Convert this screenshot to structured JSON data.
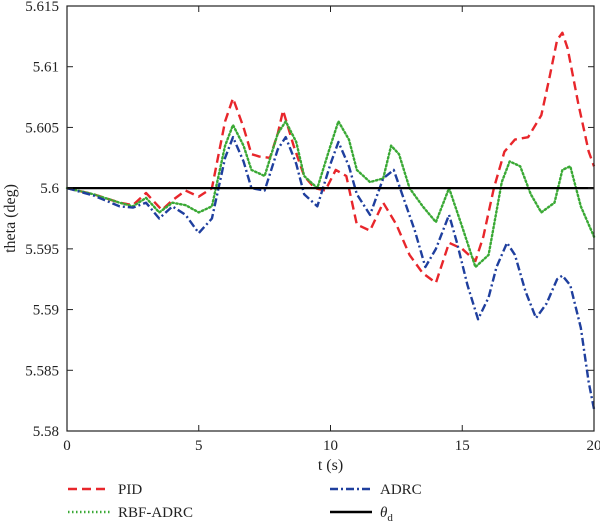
{
  "chart_data": {
    "type": "line",
    "xlabel": "t (s)",
    "ylabel": "theta (deg)",
    "xlim": [
      0,
      20
    ],
    "ylim": [
      5.58,
      5.615
    ],
    "x_ticks": [
      "0",
      "5",
      "10",
      "15",
      "20"
    ],
    "y_ticks": [
      "5.58",
      "5.585",
      "5.59",
      "5.595",
      "5.6",
      "5.605",
      "5.61",
      "5.615"
    ],
    "grid": false,
    "legend_position": "bottom",
    "series": [
      {
        "name": "PID",
        "color": "#e8262b",
        "dash": "dashed",
        "x": [
          0,
          1,
          2,
          2.5,
          3,
          3.6,
          4,
          4.5,
          5,
          5.5,
          6,
          6.3,
          6.7,
          7,
          7.3,
          7.7,
          8,
          8.2,
          8.6,
          9,
          9.4,
          9.8,
          10.2,
          10.6,
          11,
          11.5,
          12,
          12.5,
          13,
          13.5,
          14,
          14.5,
          15,
          15.5,
          15.8,
          16.2,
          16.6,
          17,
          17.5,
          18,
          18.3,
          18.6,
          18.8,
          19,
          19.4,
          19.8,
          20
        ],
        "y": [
          5.6,
          5.5995,
          5.5988,
          5.5986,
          5.5996,
          5.5982,
          5.599,
          5.5998,
          5.5993,
          5.6,
          5.6055,
          5.6074,
          5.605,
          5.6028,
          5.6026,
          5.6025,
          5.6045,
          5.6064,
          5.6035,
          5.601,
          5.6,
          5.5998,
          5.6015,
          5.601,
          5.597,
          5.5965,
          5.5988,
          5.597,
          5.5945,
          5.593,
          5.5922,
          5.5955,
          5.595,
          5.594,
          5.596,
          5.6,
          5.603,
          5.604,
          5.6042,
          5.606,
          5.609,
          5.6122,
          5.6128,
          5.6115,
          5.607,
          5.603,
          5.6018
        ]
      },
      {
        "name": "RBF-ADRC",
        "color": "#3aa935",
        "dash": "dotted",
        "x": [
          0,
          1,
          2,
          2.5,
          3,
          3.5,
          4,
          4.5,
          5,
          5.5,
          6,
          6.3,
          6.7,
          7,
          7.5,
          8,
          8.3,
          8.7,
          9,
          9.5,
          10,
          10.3,
          10.7,
          11,
          11.5,
          12,
          12.3,
          12.6,
          13,
          13.5,
          14,
          14.5,
          15,
          15.5,
          16,
          16.5,
          16.8,
          17.2,
          17.6,
          18,
          18.5,
          18.8,
          19.1,
          19.5,
          20
        ],
        "y": [
          5.6,
          5.5995,
          5.5988,
          5.5985,
          5.5992,
          5.598,
          5.5988,
          5.5986,
          5.598,
          5.5985,
          5.6035,
          5.6052,
          5.6035,
          5.6015,
          5.601,
          5.6045,
          5.6055,
          5.6038,
          5.601,
          5.6,
          5.6035,
          5.6055,
          5.604,
          5.6015,
          5.6005,
          5.6008,
          5.6035,
          5.6028,
          5.6,
          5.5985,
          5.5972,
          5.6,
          5.5968,
          5.5935,
          5.5945,
          5.6005,
          5.6022,
          5.6018,
          5.5995,
          5.598,
          5.5988,
          5.6015,
          5.6018,
          5.5985,
          5.596
        ]
      },
      {
        "name": "ADRC",
        "color": "#1f3f9e",
        "dash": "dashdot",
        "x": [
          0,
          1,
          2,
          2.5,
          3,
          3.5,
          4,
          4.5,
          5,
          5.5,
          6,
          6.3,
          6.7,
          7,
          7.5,
          8,
          8.3,
          8.7,
          9,
          9.5,
          10,
          10.3,
          10.7,
          11,
          11.5,
          12,
          12.4,
          12.8,
          13.2,
          13.6,
          14,
          14.5,
          14.8,
          15.2,
          15.6,
          16,
          16.3,
          16.7,
          17,
          17.4,
          17.8,
          18.2,
          18.6,
          18.8,
          19.1,
          19.5,
          19.8,
          20
        ],
        "y": [
          5.6,
          5.5994,
          5.5985,
          5.5984,
          5.5988,
          5.5975,
          5.5985,
          5.5978,
          5.5963,
          5.5975,
          5.6025,
          5.6042,
          5.6022,
          5.6,
          5.5998,
          5.6032,
          5.6042,
          5.602,
          5.5995,
          5.5985,
          5.602,
          5.6038,
          5.6018,
          5.5995,
          5.5978,
          5.6008,
          5.6015,
          5.599,
          5.5965,
          5.5935,
          5.595,
          5.5978,
          5.5955,
          5.592,
          5.5892,
          5.591,
          5.5935,
          5.5955,
          5.5945,
          5.5915,
          5.5893,
          5.5905,
          5.5925,
          5.5928,
          5.592,
          5.5885,
          5.584,
          5.5818
        ]
      },
      {
        "name": "θd",
        "color": "#000000",
        "dash": "solid",
        "x": [
          0,
          20
        ],
        "y": [
          5.6,
          5.6
        ]
      }
    ]
  },
  "legend": [
    {
      "label": "PID",
      "color": "#e8262b",
      "dash": "dashed"
    },
    {
      "label": "RBF-ADRC",
      "color": "#3aa935",
      "dash": "dotted"
    },
    {
      "label": "ADRC",
      "color": "#1f3f9e",
      "dash": "dashdot"
    },
    {
      "label": "θd",
      "color": "#000000",
      "dash": "solid"
    }
  ]
}
